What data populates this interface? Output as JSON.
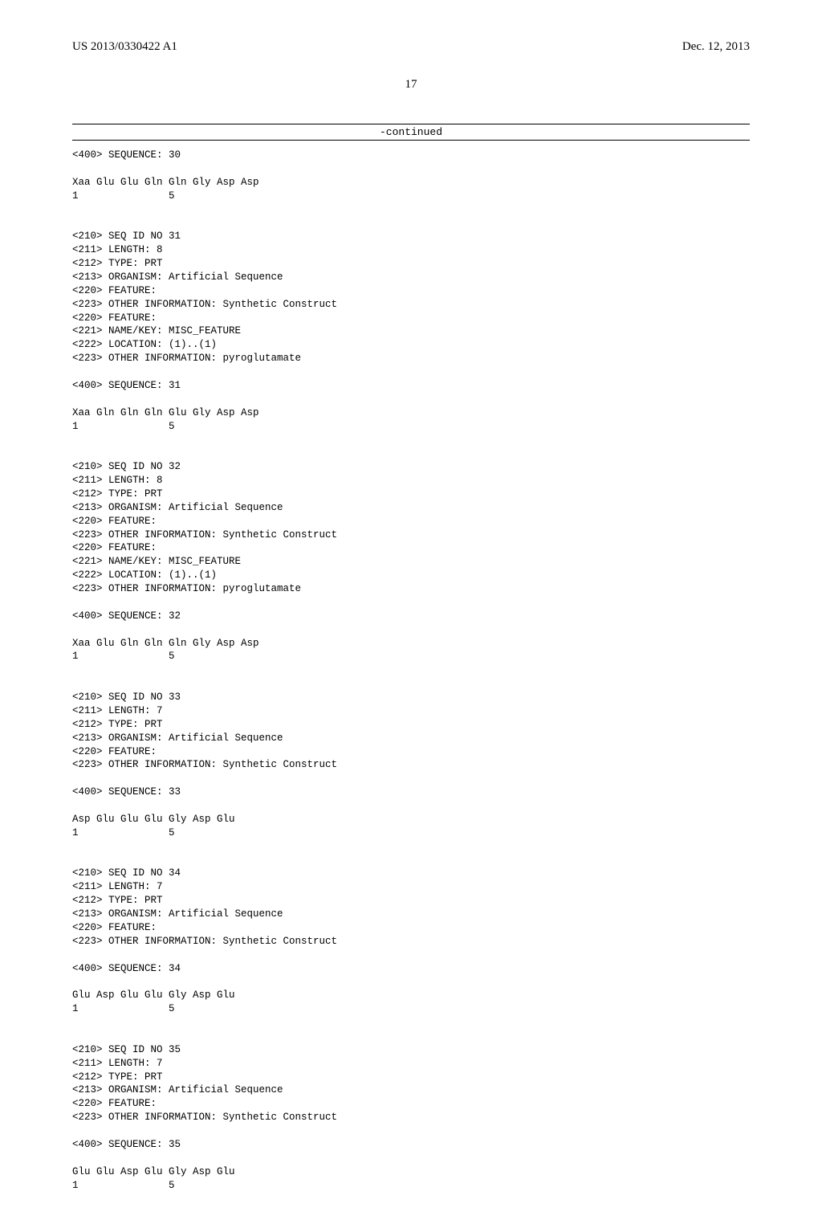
{
  "header": {
    "pub_number": "US 2013/0330422 A1",
    "pub_date": "Dec. 12, 2013"
  },
  "page_number": "17",
  "continued_label": "-continued",
  "sequences": [
    {
      "pre_lines": [
        "<400> SEQUENCE: 30"
      ],
      "seq_line": "Xaa Glu Glu Gln Gln Gly Asp Asp",
      "num_line": "1               5"
    },
    {
      "pre_lines": [
        "<210> SEQ ID NO 31",
        "<211> LENGTH: 8",
        "<212> TYPE: PRT",
        "<213> ORGANISM: Artificial Sequence",
        "<220> FEATURE:",
        "<223> OTHER INFORMATION: Synthetic Construct",
        "<220> FEATURE:",
        "<221> NAME/KEY: MISC_FEATURE",
        "<222> LOCATION: (1)..(1)",
        "<223> OTHER INFORMATION: pyroglutamate",
        "",
        "<400> SEQUENCE: 31"
      ],
      "seq_line": "Xaa Gln Gln Gln Glu Gly Asp Asp",
      "num_line": "1               5"
    },
    {
      "pre_lines": [
        "<210> SEQ ID NO 32",
        "<211> LENGTH: 8",
        "<212> TYPE: PRT",
        "<213> ORGANISM: Artificial Sequence",
        "<220> FEATURE:",
        "<223> OTHER INFORMATION: Synthetic Construct",
        "<220> FEATURE:",
        "<221> NAME/KEY: MISC_FEATURE",
        "<222> LOCATION: (1)..(1)",
        "<223> OTHER INFORMATION: pyroglutamate",
        "",
        "<400> SEQUENCE: 32"
      ],
      "seq_line": "Xaa Glu Gln Gln Gln Gly Asp Asp",
      "num_line": "1               5"
    },
    {
      "pre_lines": [
        "<210> SEQ ID NO 33",
        "<211> LENGTH: 7",
        "<212> TYPE: PRT",
        "<213> ORGANISM: Artificial Sequence",
        "<220> FEATURE:",
        "<223> OTHER INFORMATION: Synthetic Construct",
        "",
        "<400> SEQUENCE: 33"
      ],
      "seq_line": "Asp Glu Glu Glu Gly Asp Glu",
      "num_line": "1               5"
    },
    {
      "pre_lines": [
        "<210> SEQ ID NO 34",
        "<211> LENGTH: 7",
        "<212> TYPE: PRT",
        "<213> ORGANISM: Artificial Sequence",
        "<220> FEATURE:",
        "<223> OTHER INFORMATION: Synthetic Construct",
        "",
        "<400> SEQUENCE: 34"
      ],
      "seq_line": "Glu Asp Glu Glu Gly Asp Glu",
      "num_line": "1               5"
    },
    {
      "pre_lines": [
        "<210> SEQ ID NO 35",
        "<211> LENGTH: 7",
        "<212> TYPE: PRT",
        "<213> ORGANISM: Artificial Sequence",
        "<220> FEATURE:",
        "<223> OTHER INFORMATION: Synthetic Construct",
        "",
        "<400> SEQUENCE: 35"
      ],
      "seq_line": "Glu Glu Asp Glu Gly Asp Glu",
      "num_line": "1               5"
    }
  ]
}
